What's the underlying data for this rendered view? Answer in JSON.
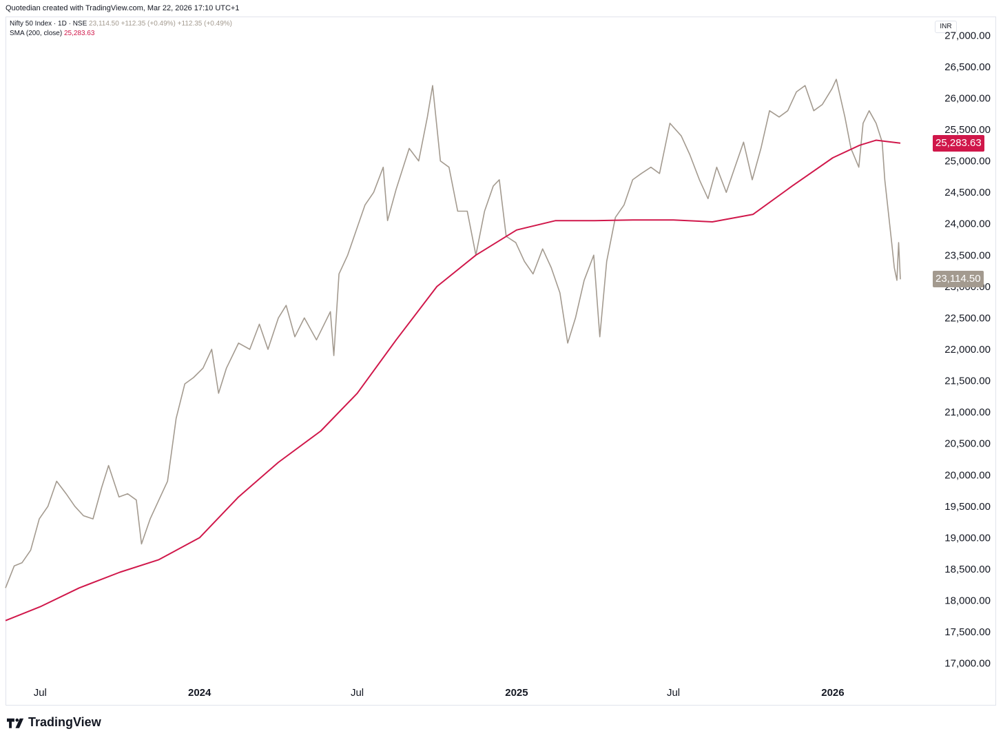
{
  "header": {
    "credit": "Quotedian created with TradingView.com, Mar 22, 2026 17:10 UTC+1"
  },
  "legend": {
    "symbol_title": "Nifty 50 Index · 1D · NSE",
    "symbol_values": "23,114.50  +112.35 (+0.49%)  +112.35 (+0.49%)",
    "sma_title": "SMA (200, close)",
    "sma_value": "25,283.63"
  },
  "currency": "INR",
  "brand": {
    "name": "TradingView"
  },
  "colors": {
    "price": "#a39a8f",
    "sma": "#d0174a",
    "price_badge": "#a39a8f",
    "sma_badge": "#d0174a"
  },
  "chart_data": {
    "type": "line",
    "ylim": [
      16700,
      27300
    ],
    "yticks": [
      "27,000.00",
      "26,500.00",
      "26,000.00",
      "25,500.00",
      "25,000.00",
      "24,500.00",
      "24,000.00",
      "23,500.00",
      "23,000.00",
      "22,500.00",
      "22,000.00",
      "21,500.00",
      "21,000.00",
      "20,500.00",
      "20,000.00",
      "19,500.00",
      "19,000.00",
      "18,500.00",
      "18,000.00",
      "17,500.00",
      "17,000.00"
    ],
    "ytick_values": [
      27000,
      26500,
      26000,
      25500,
      25000,
      24500,
      24000,
      23500,
      23000,
      22500,
      22000,
      21500,
      21000,
      20500,
      20000,
      19500,
      19000,
      18500,
      18000,
      17500,
      17000
    ],
    "xlim": [
      "2023-05-22",
      "2026-04-20"
    ],
    "xticks": [
      {
        "label": "Jul",
        "date": "2023-07-01",
        "year": false
      },
      {
        "label": "2024",
        "date": "2024-01-01",
        "year": true
      },
      {
        "label": "Jul",
        "date": "2024-07-01",
        "year": false
      },
      {
        "label": "2025",
        "date": "2025-01-01",
        "year": true
      },
      {
        "label": "Jul",
        "date": "2025-07-01",
        "year": false
      },
      {
        "label": "2026",
        "date": "2026-01-01",
        "year": true
      }
    ],
    "series": [
      {
        "name": "Nifty 50 Index",
        "points": [
          [
            "2023-05-22",
            18200
          ],
          [
            "2023-06-01",
            18550
          ],
          [
            "2023-06-10",
            18600
          ],
          [
            "2023-06-20",
            18800
          ],
          [
            "2023-06-30",
            19300
          ],
          [
            "2023-07-10",
            19500
          ],
          [
            "2023-07-20",
            19900
          ],
          [
            "2023-07-31",
            19700
          ],
          [
            "2023-08-10",
            19500
          ],
          [
            "2023-08-20",
            19350
          ],
          [
            "2023-08-31",
            19300
          ],
          [
            "2023-09-10",
            19800
          ],
          [
            "2023-09-18",
            20150
          ],
          [
            "2023-09-30",
            19650
          ],
          [
            "2023-10-10",
            19700
          ],
          [
            "2023-10-20",
            19600
          ],
          [
            "2023-10-26",
            18900
          ],
          [
            "2023-11-05",
            19300
          ],
          [
            "2023-11-15",
            19600
          ],
          [
            "2023-11-25",
            19900
          ],
          [
            "2023-12-05",
            20900
          ],
          [
            "2023-12-15",
            21450
          ],
          [
            "2023-12-25",
            21550
          ],
          [
            "2024-01-05",
            21700
          ],
          [
            "2024-01-15",
            22000
          ],
          [
            "2024-01-23",
            21300
          ],
          [
            "2024-02-01",
            21700
          ],
          [
            "2024-02-15",
            22100
          ],
          [
            "2024-02-28",
            22000
          ],
          [
            "2024-03-10",
            22400
          ],
          [
            "2024-03-20",
            22000
          ],
          [
            "2024-04-01",
            22500
          ],
          [
            "2024-04-10",
            22700
          ],
          [
            "2024-04-20",
            22200
          ],
          [
            "2024-05-01",
            22500
          ],
          [
            "2024-05-15",
            22150
          ],
          [
            "2024-05-31",
            22600
          ],
          [
            "2024-06-04",
            21900
          ],
          [
            "2024-06-10",
            23200
          ],
          [
            "2024-06-20",
            23500
          ],
          [
            "2024-06-30",
            23900
          ],
          [
            "2024-07-10",
            24300
          ],
          [
            "2024-07-20",
            24500
          ],
          [
            "2024-07-31",
            24900
          ],
          [
            "2024-08-05",
            24050
          ],
          [
            "2024-08-15",
            24550
          ],
          [
            "2024-08-30",
            25200
          ],
          [
            "2024-09-10",
            25000
          ],
          [
            "2024-09-20",
            25700
          ],
          [
            "2024-09-26",
            26200
          ],
          [
            "2024-10-05",
            25000
          ],
          [
            "2024-10-15",
            24900
          ],
          [
            "2024-10-25",
            24200
          ],
          [
            "2024-11-05",
            24200
          ],
          [
            "2024-11-15",
            23500
          ],
          [
            "2024-11-25",
            24200
          ],
          [
            "2024-12-05",
            24600
          ],
          [
            "2024-12-12",
            24700
          ],
          [
            "2024-12-20",
            23800
          ],
          [
            "2024-12-31",
            23700
          ],
          [
            "2025-01-10",
            23400
          ],
          [
            "2025-01-20",
            23200
          ],
          [
            "2025-01-31",
            23600
          ],
          [
            "2025-02-10",
            23300
          ],
          [
            "2025-02-20",
            22900
          ],
          [
            "2025-03-01",
            22100
          ],
          [
            "2025-03-10",
            22500
          ],
          [
            "2025-03-20",
            23100
          ],
          [
            "2025-03-31",
            23500
          ],
          [
            "2025-04-07",
            22200
          ],
          [
            "2025-04-15",
            23400
          ],
          [
            "2025-04-25",
            24100
          ],
          [
            "2025-05-05",
            24300
          ],
          [
            "2025-05-15",
            24700
          ],
          [
            "2025-05-25",
            24800
          ],
          [
            "2025-06-05",
            24900
          ],
          [
            "2025-06-15",
            24800
          ],
          [
            "2025-06-27",
            25600
          ],
          [
            "2025-07-10",
            25400
          ],
          [
            "2025-07-20",
            25100
          ],
          [
            "2025-07-31",
            24700
          ],
          [
            "2025-08-10",
            24400
          ],
          [
            "2025-08-20",
            24900
          ],
          [
            "2025-08-31",
            24500
          ],
          [
            "2025-09-10",
            24900
          ],
          [
            "2025-09-20",
            25300
          ],
          [
            "2025-09-30",
            24700
          ],
          [
            "2025-10-10",
            25200
          ],
          [
            "2025-10-20",
            25800
          ],
          [
            "2025-10-31",
            25700
          ],
          [
            "2025-11-10",
            25800
          ],
          [
            "2025-11-20",
            26100
          ],
          [
            "2025-11-30",
            26200
          ],
          [
            "2025-12-10",
            25800
          ],
          [
            "2025-12-20",
            25900
          ],
          [
            "2025-12-31",
            26150
          ],
          [
            "2026-01-05",
            26300
          ],
          [
            "2026-01-15",
            25700
          ],
          [
            "2026-01-22",
            25200
          ],
          [
            "2026-01-31",
            24900
          ],
          [
            "2026-02-05",
            25600
          ],
          [
            "2026-02-12",
            25800
          ],
          [
            "2026-02-20",
            25600
          ],
          [
            "2026-02-27",
            25300
          ],
          [
            "2026-03-02",
            24700
          ],
          [
            "2026-03-06",
            24200
          ],
          [
            "2026-03-10",
            23700
          ],
          [
            "2026-03-13",
            23300
          ],
          [
            "2026-03-16",
            23100
          ],
          [
            "2026-03-18",
            23700
          ],
          [
            "2026-03-20",
            23114.5
          ]
        ]
      },
      {
        "name": "SMA (200, close)",
        "points": [
          [
            "2023-05-22",
            17680
          ],
          [
            "2023-07-01",
            17900
          ],
          [
            "2023-08-15",
            18200
          ],
          [
            "2023-10-01",
            18450
          ],
          [
            "2023-11-15",
            18650
          ],
          [
            "2024-01-01",
            19000
          ],
          [
            "2024-02-15",
            19650
          ],
          [
            "2024-04-01",
            20200
          ],
          [
            "2024-05-20",
            20700
          ],
          [
            "2024-07-01",
            21300
          ],
          [
            "2024-08-15",
            22150
          ],
          [
            "2024-10-01",
            23000
          ],
          [
            "2024-11-15",
            23500
          ],
          [
            "2025-01-01",
            23900
          ],
          [
            "2025-02-15",
            24050
          ],
          [
            "2025-04-01",
            24050
          ],
          [
            "2025-05-15",
            24060
          ],
          [
            "2025-07-01",
            24060
          ],
          [
            "2025-08-15",
            24030
          ],
          [
            "2025-10-01",
            24150
          ],
          [
            "2025-11-15",
            24600
          ],
          [
            "2026-01-01",
            25050
          ],
          [
            "2026-02-01",
            25250
          ],
          [
            "2026-02-20",
            25330
          ],
          [
            "2026-03-20",
            25283.63
          ]
        ]
      }
    ],
    "last_price_label": "23,114.50",
    "sma_label": "25,283.63"
  }
}
